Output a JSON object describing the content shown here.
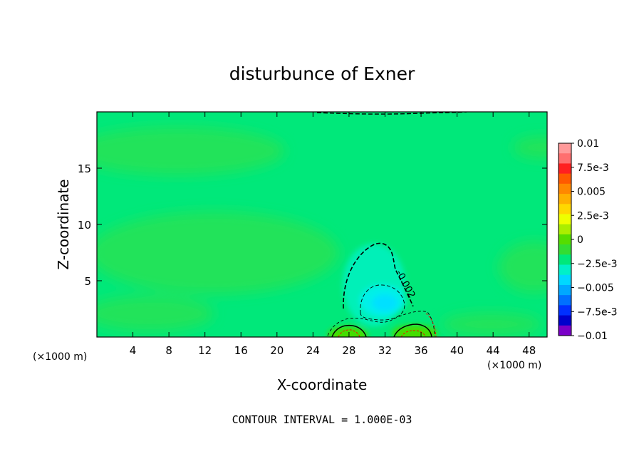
{
  "chart_data": {
    "type": "heatmap",
    "title": "disturbunce of Exner",
    "xlabel": "X-coordinate",
    "ylabel": "Z-coordinate",
    "x_unit_left": "(×1000 m)",
    "x_unit_right": "(×1000 m)",
    "xlim": [
      0,
      50
    ],
    "ylim": [
      0,
      20
    ],
    "x_ticks": [
      4,
      8,
      12,
      16,
      20,
      24,
      28,
      32,
      36,
      40,
      44,
      48
    ],
    "y_ticks": [
      5,
      10,
      15
    ],
    "contour_interval_text": "CONTOUR INTERVAL = 1.000E-03",
    "contour_label": "-0.002",
    "colorbar": {
      "levels": [
        -0.01,
        -0.0075,
        -0.005,
        -0.0025,
        0,
        0.0025,
        0.005,
        0.0075,
        0.01
      ],
      "labels": [
        "0.01",
        "7.5e-3",
        "0.005",
        "2.5e-3",
        "0",
        "−2.5e-3",
        "−0.005",
        "−7.5e-3",
        "−0.01"
      ],
      "colors": [
        "#ff9a9a",
        "#ff6f6f",
        "#ff2020",
        "#ff5a00",
        "#ff8800",
        "#ffb000",
        "#ffd800",
        "#eeff00",
        "#aaee00",
        "#55dd00",
        "#33dd33",
        "#00e87a",
        "#00f0c8",
        "#00d8ff",
        "#00a8ff",
        "#0070ff",
        "#0030ff",
        "#0000cc",
        "#7a00c8"
      ]
    },
    "field": {
      "background_value": -0.0012,
      "features": [
        {
          "kind": "low",
          "x": 31.5,
          "z": 3.2,
          "amplitude": -0.0032
        },
        {
          "kind": "low",
          "x": 30.5,
          "z": 6.5,
          "amplitude": -0.0008
        },
        {
          "kind": "high",
          "x": 28.0,
          "z": 0.3,
          "amplitude": 0.0015
        },
        {
          "kind": "high",
          "x": 35.5,
          "z": 0.3,
          "amplitude": 0.0013
        },
        {
          "kind": "high",
          "x": 10.0,
          "z": 10.5,
          "amplitude": 0.0004
        },
        {
          "kind": "high",
          "x": 10.0,
          "z": 17.0,
          "amplitude": 0.0004
        },
        {
          "kind": "high",
          "x": 48.0,
          "z": 17.0,
          "amplitude": 0.0003
        },
        {
          "kind": "high",
          "x": 48.0,
          "z": 7.5,
          "amplitude": 0.0003
        },
        {
          "kind": "high",
          "x": 10.0,
          "z": 2.0,
          "amplitude": 0.0003
        }
      ]
    }
  }
}
